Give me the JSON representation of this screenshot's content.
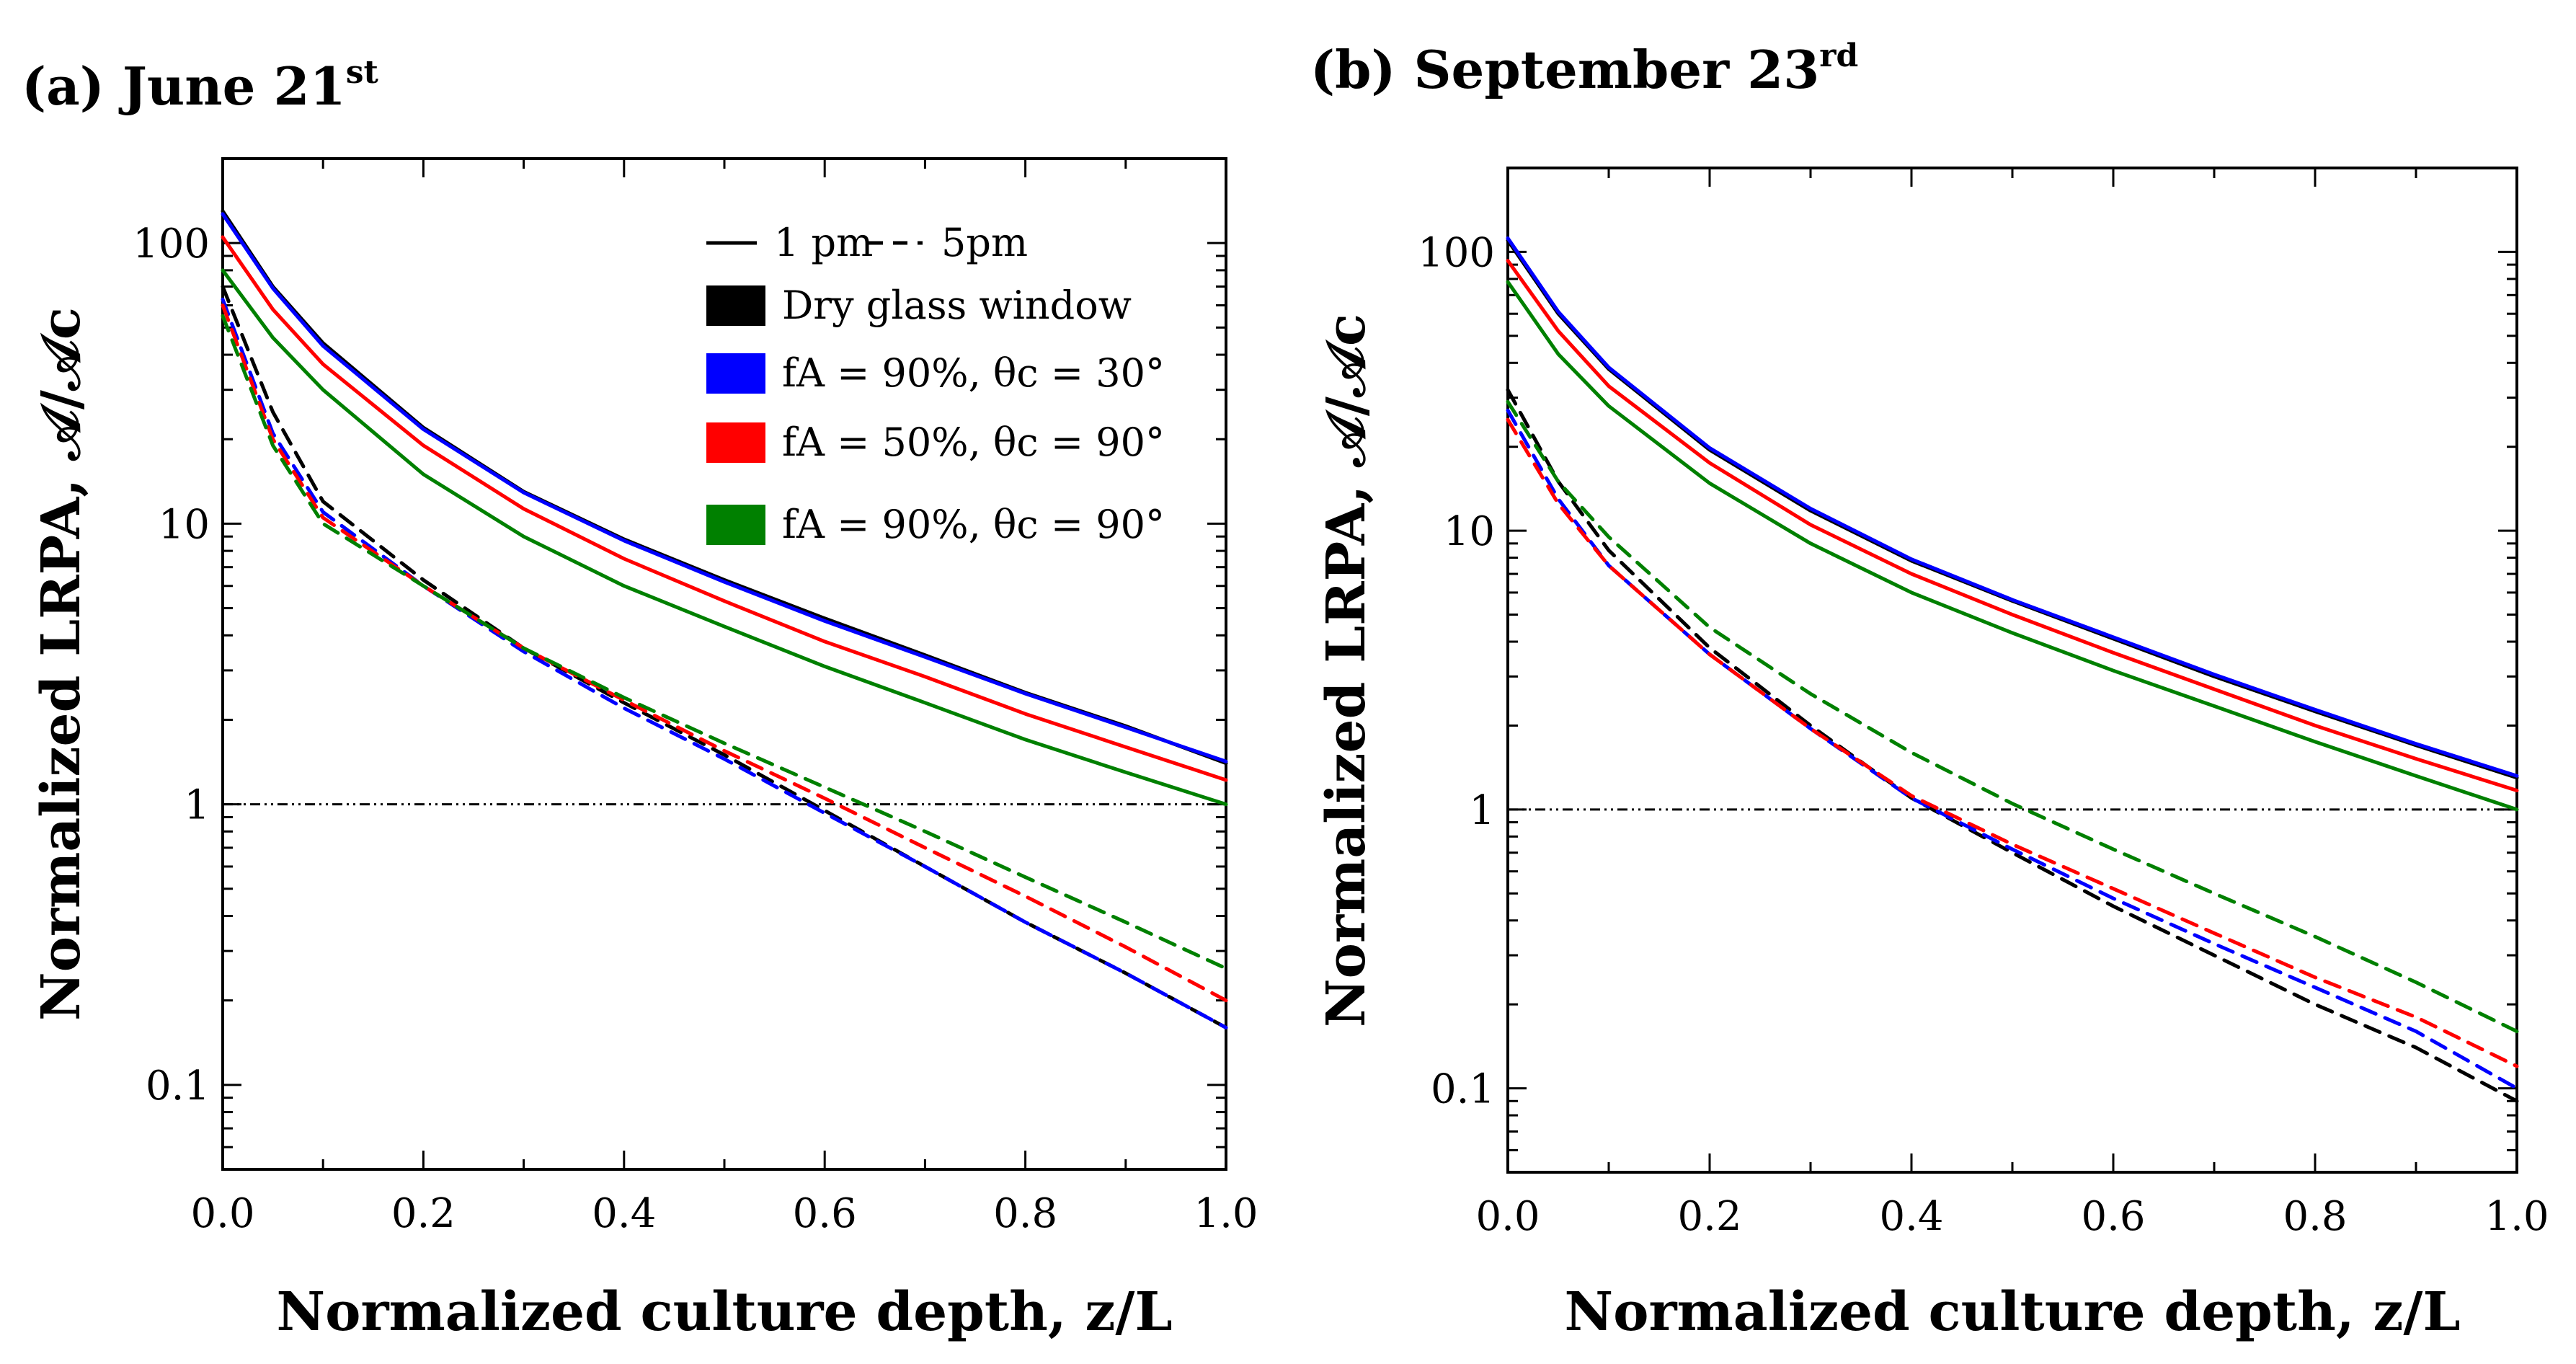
{
  "chart_data": [
    {
      "type": "line",
      "panel": "(a)",
      "title": "(a) June 21",
      "title_sup": "st",
      "xlabel": "Normalized culture depth, z/L",
      "ylabel": "Normalized LRPA, 𝒜/𝒜c",
      "xscale": "linear",
      "yscale": "log",
      "xlim": [
        0.0,
        1.0
      ],
      "ylim": [
        0.05,
        200
      ],
      "xticks": [
        "0.0",
        "0.2",
        "0.4",
        "0.6",
        "0.8",
        "1.0"
      ],
      "yticks": [
        "0.1",
        "1",
        "10",
        "100"
      ],
      "reference_line": {
        "y": 1,
        "style": "dash-dot",
        "color": "#000000"
      },
      "legend": {
        "placement": "top-right",
        "style_entries": [
          {
            "label": "1 pm",
            "dash": "solid"
          },
          {
            "label": "5pm",
            "dash": "dashed"
          }
        ],
        "color_entries": [
          {
            "label": "Dry glass window",
            "color": "#000000"
          },
          {
            "label": "fA = 90%, θc = 30°",
            "color": "#0000ff"
          },
          {
            "label": "fA = 50%, θc = 90°",
            "color": "#ff0000"
          },
          {
            "label": "fA = 90%, θc = 90°",
            "color": "#008000"
          }
        ]
      },
      "x": [
        0.0,
        0.05,
        0.1,
        0.2,
        0.3,
        0.4,
        0.5,
        0.6,
        0.7,
        0.8,
        0.9,
        1.0
      ],
      "series": [
        {
          "name": "Dry glass window, 1 pm",
          "color": "#000000",
          "dash": "solid",
          "values": [
            130,
            70,
            44,
            22,
            13,
            8.8,
            6.3,
            4.6,
            3.4,
            2.5,
            1.9,
            1.4
          ]
        },
        {
          "name": "fA = 90%, θc = 30°, 1 pm",
          "color": "#0000ff",
          "dash": "solid",
          "values": [
            127,
            69,
            43,
            21.7,
            12.9,
            8.7,
            6.2,
            4.5,
            3.35,
            2.48,
            1.88,
            1.42
          ]
        },
        {
          "name": "fA = 50%, θc = 90°, 1 pm",
          "color": "#ff0000",
          "dash": "solid",
          "values": [
            105,
            58,
            37,
            19,
            11.3,
            7.5,
            5.3,
            3.8,
            2.85,
            2.1,
            1.6,
            1.22
          ]
        },
        {
          "name": "fA = 90%, θc = 90°, 1 pm",
          "color": "#008000",
          "dash": "solid",
          "values": [
            80,
            46,
            30,
            15,
            9.0,
            6.0,
            4.3,
            3.1,
            2.3,
            1.7,
            1.3,
            1.0
          ]
        },
        {
          "name": "Dry glass window, 5pm",
          "color": "#000000",
          "dash": "dashed",
          "values": [
            70,
            25,
            12,
            6.3,
            3.6,
            2.3,
            1.5,
            0.95,
            0.6,
            0.38,
            0.25,
            0.16
          ]
        },
        {
          "name": "fA = 90%, θc = 30°, 5pm",
          "color": "#0000ff",
          "dash": "dashed",
          "values": [
            63,
            21,
            11,
            6.0,
            3.5,
            2.2,
            1.45,
            0.93,
            0.6,
            0.38,
            0.25,
            0.16
          ]
        },
        {
          "name": "fA = 50%, θc = 90°, 5pm",
          "color": "#ff0000",
          "dash": "dashed",
          "values": [
            60,
            20,
            10.5,
            6.0,
            3.6,
            2.35,
            1.55,
            1.05,
            0.7,
            0.47,
            0.31,
            0.2
          ]
        },
        {
          "name": "fA = 90%, θc = 90°, 5pm",
          "color": "#008000",
          "dash": "dashed",
          "values": [
            55,
            19,
            10,
            6.0,
            3.6,
            2.4,
            1.65,
            1.15,
            0.8,
            0.55,
            0.38,
            0.26
          ]
        }
      ]
    },
    {
      "type": "line",
      "panel": "(b)",
      "title": "(b) September 23",
      "title_sup": "rd",
      "xlabel": "Normalized culture depth, z/L",
      "ylabel": "Normalized LRPA, 𝒜/𝒜c",
      "xscale": "linear",
      "yscale": "log",
      "xlim": [
        0.0,
        1.0
      ],
      "ylim": [
        0.05,
        200
      ],
      "xticks": [
        "0.0",
        "0.2",
        "0.4",
        "0.6",
        "0.8",
        "1.0"
      ],
      "yticks": [
        "0.1",
        "1",
        "10",
        "100"
      ],
      "reference_line": {
        "y": 1,
        "style": "dash-dot",
        "color": "#000000"
      },
      "x": [
        0.0,
        0.05,
        0.1,
        0.2,
        0.3,
        0.4,
        0.5,
        0.6,
        0.7,
        0.8,
        0.9,
        1.0
      ],
      "series": [
        {
          "name": "Dry glass window, 1 pm",
          "color": "#000000",
          "dash": "solid",
          "values": [
            110,
            60,
            38,
            19.5,
            11.8,
            7.8,
            5.6,
            4.1,
            3.0,
            2.25,
            1.7,
            1.3
          ]
        },
        {
          "name": "fA = 90%, θc = 30°, 1 pm",
          "color": "#0000ff",
          "dash": "solid",
          "values": [
            112,
            61,
            38.5,
            19.8,
            12.0,
            7.9,
            5.65,
            4.15,
            3.05,
            2.28,
            1.72,
            1.32
          ]
        },
        {
          "name": "fA = 50%, θc = 90°, 1 pm",
          "color": "#ff0000",
          "dash": "solid",
          "values": [
            93,
            52,
            33,
            17.5,
            10.5,
            7.0,
            5.0,
            3.65,
            2.7,
            2.0,
            1.52,
            1.17
          ]
        },
        {
          "name": "fA = 90%, θc = 90°, 1 pm",
          "color": "#008000",
          "dash": "solid",
          "values": [
            78,
            43,
            28,
            14.8,
            9.0,
            6.0,
            4.3,
            3.15,
            2.35,
            1.75,
            1.32,
            1.0
          ]
        },
        {
          "name": "Dry glass window, 5pm",
          "color": "#000000",
          "dash": "dashed",
          "values": [
            32,
            15,
            8.5,
            3.8,
            2.0,
            1.1,
            0.7,
            0.45,
            0.3,
            0.2,
            0.14,
            0.09
          ]
        },
        {
          "name": "fA = 90%, θc = 30°, 5pm",
          "color": "#0000ff",
          "dash": "dashed",
          "values": [
            27,
            13,
            7.5,
            3.6,
            1.95,
            1.1,
            0.72,
            0.48,
            0.33,
            0.23,
            0.16,
            0.1
          ]
        },
        {
          "name": "fA = 50%, θc = 90°, 5pm",
          "color": "#ff0000",
          "dash": "dashed",
          "values": [
            25,
            12.5,
            7.5,
            3.6,
            1.95,
            1.12,
            0.75,
            0.52,
            0.36,
            0.25,
            0.18,
            0.12
          ]
        },
        {
          "name": "fA = 90%, θc = 90°, 5pm",
          "color": "#008000",
          "dash": "dashed",
          "values": [
            29,
            15,
            9.5,
            4.5,
            2.6,
            1.6,
            1.05,
            0.72,
            0.5,
            0.35,
            0.24,
            0.16
          ]
        }
      ]
    }
  ]
}
